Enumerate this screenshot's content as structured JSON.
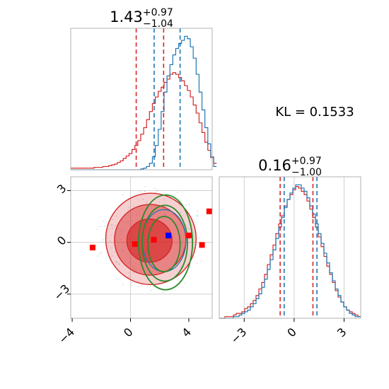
{
  "chart_data": {
    "type": "corner",
    "annotation": "KL = 0.1533",
    "colors": {
      "red": "#d62728",
      "blue": "#1f77b4",
      "green": "#2a8a2a",
      "marker_red": "#ff0000",
      "marker_blue": "#0000ff",
      "grid": "#d0d0d0"
    },
    "panels": [
      {
        "name": "marginal-x",
        "type": "histogram",
        "title_main": "1.43",
        "title_sup": "+0.97",
        "title_sub": "−1.04",
        "xlim": [
          -4.1,
          5.6
        ],
        "bins": {
          "start": -4.1,
          "width": 0.2
        },
        "series": [
          {
            "name": "red",
            "color": "red",
            "counts": [
              2,
              2,
              2,
              2,
              2,
              2,
              2,
              2,
              3,
              3,
              3,
              4,
              4,
              5,
              6,
              7,
              9,
              11,
              14,
              17,
              20,
              25,
              30,
              36,
              44,
              52,
              62,
              72,
              82,
              90,
              97,
              102,
              108,
              112,
              118,
              120,
              118,
              114,
              110,
              104,
              98,
              90,
              80,
              70,
              58,
              46,
              34,
              24,
              15,
              8
            ]
          },
          {
            "name": "blue",
            "color": "blue",
            "counts": [
              0,
              0,
              0,
              0,
              0,
              0,
              0,
              0,
              0,
              0,
              0,
              0,
              0,
              0,
              0,
              0,
              0,
              0,
              0,
              0,
              0,
              0,
              0,
              0,
              1,
              2,
              4,
              8,
              16,
              30,
              50,
              72,
              96,
              116,
              130,
              142,
              150,
              156,
              160,
              165,
              162,
              152,
              138,
              118,
              96,
              74,
              52,
              32,
              16,
              4
            ]
          }
        ],
        "vlines": [
          {
            "x": 0.39,
            "color": "red"
          },
          {
            "x": 2.27,
            "color": "red"
          },
          {
            "x": 1.62,
            "color": "blue"
          },
          {
            "x": 3.4,
            "color": "blue"
          }
        ]
      },
      {
        "name": "marginal-y",
        "type": "histogram",
        "title_main": "0.16",
        "title_sup": "+0.97",
        "title_sub": "−1.00",
        "xlim": [
          -4.5,
          4.0
        ],
        "xticks": [
          -3,
          0,
          3
        ],
        "xtick_labels": [
          "−3",
          "0",
          "3"
        ],
        "bins": {
          "start": -4.5,
          "width": 0.17
        },
        "series": [
          {
            "name": "red",
            "color": "red",
            "counts": [
              0,
              0,
              1,
              1,
              1,
              2,
              3,
              3,
              4,
              6,
              7,
              9,
              11,
              14,
              18,
              22,
              27,
              33,
              39,
              45,
              52,
              58,
              63,
              69,
              73,
              76,
              79,
              81,
              80,
              78,
              76,
              72,
              67,
              62,
              56,
              50,
              44,
              38,
              32,
              27,
              22,
              17,
              13,
              10,
              7,
              5,
              4,
              3,
              2,
              1
            ]
          },
          {
            "name": "blue",
            "color": "blue",
            "counts": [
              0,
              0,
              0,
              0,
              0,
              1,
              1,
              2,
              3,
              4,
              5,
              7,
              9,
              12,
              15,
              19,
              24,
              30,
              36,
              42,
              49,
              56,
              62,
              68,
              73,
              77,
              80,
              82,
              82,
              80,
              78,
              74,
              69,
              64,
              58,
              52,
              46,
              40,
              34,
              28,
              23,
              18,
              14,
              10,
              7,
              5,
              3,
              2,
              1,
              1
            ]
          }
        ],
        "vlines": [
          {
            "x": -0.84,
            "color": "red"
          },
          {
            "x": 1.13,
            "color": "red"
          },
          {
            "x": -0.6,
            "color": "blue"
          },
          {
            "x": 1.37,
            "color": "blue"
          }
        ]
      },
      {
        "name": "joint",
        "type": "contour",
        "xlim": [
          -4.1,
          5.6
        ],
        "ylim": [
          -4.4,
          3.8
        ],
        "xticks": [
          -4,
          0,
          4
        ],
        "xtick_labels": [
          "−4",
          "0",
          "4"
        ],
        "yticks": [
          -3,
          0,
          3
        ],
        "ytick_labels": [
          "−3",
          "0",
          "3"
        ],
        "grid_x": [
          0
        ],
        "grid_y": [
          -3,
          0,
          3
        ],
        "red_regions": [
          {
            "cx": 1.3,
            "cy": 0.1,
            "rx": 1.55,
            "ry": 1.25,
            "alpha": 0.65
          },
          {
            "cx": 1.35,
            "cy": 0.15,
            "rx": 2.45,
            "ry": 2.05,
            "alpha": 0.45
          },
          {
            "cx": 1.4,
            "cy": 0.2,
            "rx": 3.1,
            "ry": 2.65,
            "alpha": 0.22
          }
        ],
        "green_ellipses": [
          {
            "cx": 2.3,
            "cy": -0.1,
            "rx": 1.1,
            "ry": 1.6
          },
          {
            "cx": 2.35,
            "cy": -0.05,
            "rx": 1.55,
            "ry": 2.2
          },
          {
            "cx": 2.4,
            "cy": 0.0,
            "rx": 1.85,
            "ry": 2.75
          }
        ],
        "red_points": [
          {
            "x": -2.6,
            "y": -0.3
          },
          {
            "x": 0.3,
            "y": -0.1
          },
          {
            "x": 1.6,
            "y": 0.15
          },
          {
            "x": 4.0,
            "y": 0.4
          },
          {
            "x": 4.9,
            "y": -0.15
          },
          {
            "x": 5.4,
            "y": 1.8
          }
        ],
        "blue_point": {
          "x": 2.6,
          "y": 0.4
        }
      }
    ]
  }
}
